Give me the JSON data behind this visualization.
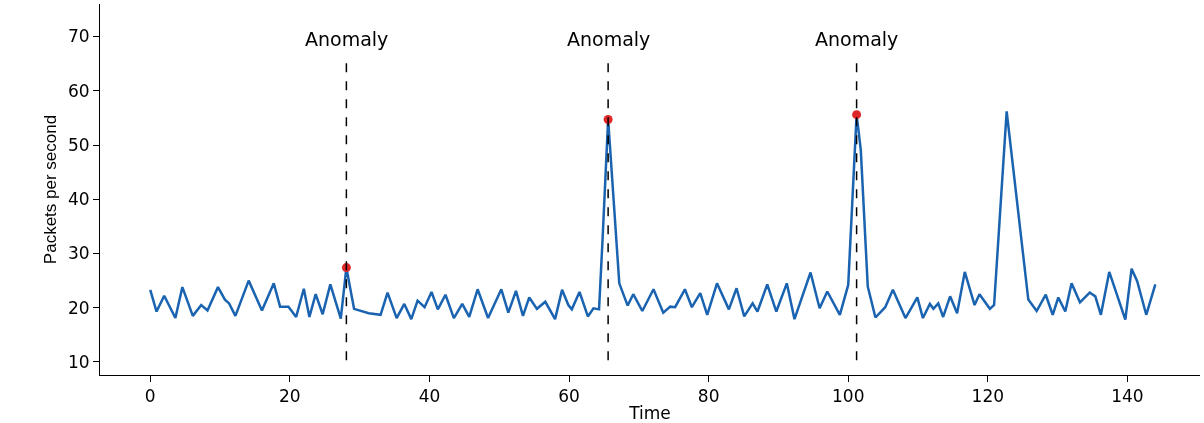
{
  "chart_data": {
    "type": "line",
    "xlabel": "Time",
    "ylabel": "Packets per second",
    "xlim": [
      -7.2,
      150.4
    ],
    "ylim": [
      7.6,
      76
    ],
    "xticks": [
      0,
      20,
      40,
      60,
      80,
      100,
      120,
      140
    ],
    "yticks": [
      10,
      20,
      30,
      40,
      50,
      60,
      70
    ],
    "grid": false,
    "series": [
      {
        "color": "#1a63b0",
        "marker": "none",
        "line_style": "solid",
        "x": [
          0,
          0.9,
          2,
          3.6,
          4.6,
          6.1,
          7.3,
          8.2,
          9.7,
          10.7,
          11.3,
          12.2,
          14.1,
          16,
          17.7,
          18.6,
          19.8,
          20.9,
          22,
          22.8,
          23.7,
          24.7,
          25.8,
          27.3,
          28.1,
          29.2,
          31.3,
          33,
          34,
          35.3,
          36.4,
          37.4,
          38.3,
          39.3,
          40.3,
          41.2,
          42.3,
          43.5,
          44.7,
          45.7,
          46.9,
          48.4,
          50.3,
          51.3,
          52.4,
          53.4,
          54.3,
          55.4,
          56.6,
          58,
          59,
          59.9,
          60.4,
          61.5,
          62.7,
          63.5,
          64.3,
          64.8,
          65.6,
          65.9,
          67.2,
          68.4,
          69.2,
          70.5,
          72.1,
          73.5,
          74.5,
          75.2,
          76.6,
          77.6,
          78.8,
          79.8,
          81.2,
          82.9,
          84,
          85.1,
          86.3,
          87,
          88.4,
          89.7,
          91.2,
          92.3,
          94.6,
          95.9,
          97,
          98.8,
          100,
          101.2,
          101.8,
          102.8,
          103.9,
          105.3,
          106.4,
          108.2,
          109.9,
          110.7,
          111.7,
          112.2,
          112.9,
          113.6,
          114.6,
          115.6,
          116.7,
          118.1,
          118.8,
          120.3,
          120.9,
          122.7,
          125.8,
          127,
          128.3,
          129.3,
          130.1,
          131.1,
          132,
          133.2,
          134.6,
          135.4,
          136.2,
          137.4,
          139.7,
          140.6,
          141.4,
          142.7,
          144
        ],
        "values": [
          23.3,
          19.3,
          22.2,
          18.1,
          23.8,
          18.5,
          20.5,
          19.5,
          23.8,
          21.5,
          20.8,
          18.5,
          25,
          19.5,
          24.5,
          20.2,
          20.2,
          18.3,
          23.5,
          18.3,
          22.5,
          18.8,
          24.3,
          18,
          27.4,
          19.8,
          19,
          18.7,
          22.8,
          18.1,
          20.7,
          17.9,
          21.3,
          20.1,
          22.9,
          19.7,
          22.4,
          18.1,
          20.7,
          18.3,
          23.4,
          18.1,
          23.4,
          19.1,
          23.1,
          18.5,
          21.9,
          19.8,
          21.1,
          17.9,
          23.3,
          20.5,
          19.7,
          22.9,
          18.4,
          19.9,
          19.7,
          32.5,
          54.7,
          49.1,
          24.5,
          20.4,
          22.5,
          19.4,
          23.4,
          19.1,
          20.2,
          20.1,
          23.4,
          20.1,
          22.7,
          18.7,
          24.5,
          19.7,
          23.6,
          18.4,
          20.8,
          19.3,
          24.3,
          19.3,
          24.5,
          17.9,
          26.5,
          19.9,
          23,
          18.7,
          24.2,
          55.6,
          49.1,
          23.9,
          18.2,
          20.1,
          23.3,
          18.1,
          21.9,
          18.1,
          20.7,
          19.8,
          20.8,
          18.3,
          22.1,
          19,
          26.6,
          20.5,
          22.5,
          19.8,
          20.5,
          56.2,
          21.5,
          19.4,
          22.4,
          18.7,
          21.9,
          19.3,
          24.5,
          21,
          22.8,
          22.1,
          18.7,
          26.6,
          17.8,
          27.2,
          24.9,
          18.7,
          24.3
        ]
      },
      {
        "type": "scatter",
        "color": "#e02828",
        "marker": "circle",
        "x": [
          28.1,
          65.6,
          101.2
        ],
        "values": [
          27.4,
          54.7,
          55.6
        ]
      }
    ],
    "ref_lines": [
      {
        "axis": "x",
        "value": 28.1,
        "label": "Anomaly",
        "color": "#000000",
        "line_style": "dashed"
      },
      {
        "axis": "x",
        "value": 65.6,
        "label": "Anomaly",
        "color": "#000000",
        "line_style": "dashed"
      },
      {
        "axis": "x",
        "value": 101.2,
        "label": "Anomaly",
        "color": "#000000",
        "line_style": "dashed"
      }
    ]
  }
}
